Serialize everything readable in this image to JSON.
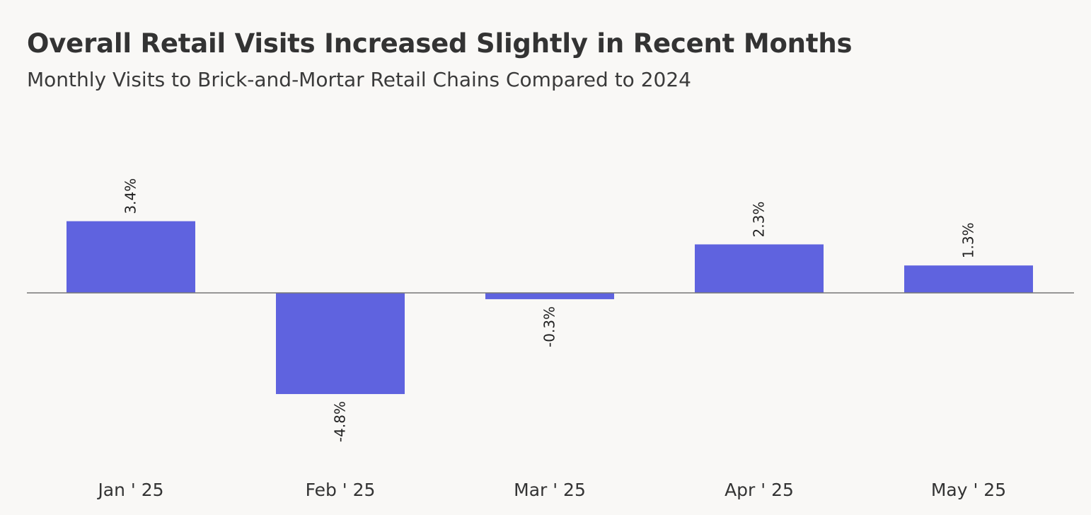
{
  "header": {
    "title": "Overall Retail Visits Increased Slightly in Recent Months",
    "subtitle": "Monthly Visits to Brick-and-Mortar Retail Chains Compared to 2024"
  },
  "chart_data": {
    "type": "bar",
    "title": "Overall Retail Visits Increased Slightly in Recent Months",
    "subtitle": "Monthly Visits to Brick-and-Mortar Retail Chains Compared to 2024",
    "categories": [
      "Jan ' 25",
      "Feb ' 25",
      "Mar ' 25",
      "Apr ' 25",
      "May ' 25"
    ],
    "values": [
      3.4,
      -4.8,
      -0.3,
      2.3,
      1.3
    ],
    "data_labels": [
      "3.4%",
      "-4.8%",
      "-0.3%",
      "2.3%",
      "1.3%"
    ],
    "xlabel": "",
    "ylabel": "",
    "grid": false,
    "legend": "none",
    "colors": {
      "bar": "#5f63df",
      "baseline": "#777777",
      "background": "#f9f8f6"
    }
  }
}
